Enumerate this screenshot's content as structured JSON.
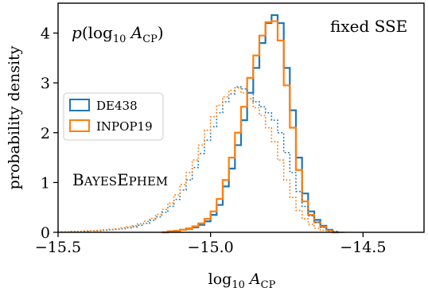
{
  "chart_data": {
    "type": "histogram",
    "title": "",
    "xlabel": "log10 A_CP",
    "ylabel": "probability density",
    "xlim": [
      -15.5,
      -14.3
    ],
    "ylim": [
      0,
      4.6
    ],
    "xticks": [
      -15.5,
      -15.0,
      -14.5
    ],
    "xtick_labels": [
      "−15.5",
      "−15.0",
      "−14.5"
    ],
    "yticks": [
      0,
      1,
      2,
      3,
      4
    ],
    "ytick_labels": [
      "0",
      "1",
      "2",
      "3",
      "4"
    ],
    "grid": false,
    "legend": {
      "position": "left",
      "entries": [
        "DE438",
        "INPOP19"
      ]
    },
    "annotations": {
      "top_left": "p(log10 A_CP)",
      "top_right": "fixed SSE",
      "middle_left": "BayesEphem"
    },
    "series": [
      {
        "name": "DE438",
        "case": "fixed SSE",
        "style": "solid",
        "color": "#1f77b4",
        "bin_start": -15.16,
        "bin_width": 0.02,
        "values": [
          0.0,
          0.02,
          0.03,
          0.05,
          0.07,
          0.1,
          0.15,
          0.22,
          0.35,
          0.55,
          0.92,
          1.28,
          1.75,
          2.25,
          2.8,
          3.3,
          3.8,
          4.2,
          4.36,
          4.2,
          3.3,
          2.45,
          1.5,
          0.78,
          0.42,
          0.25,
          0.13,
          0.05,
          0.0
        ]
      },
      {
        "name": "INPOP19",
        "case": "fixed SSE",
        "style": "solid",
        "color": "#ff7f0e",
        "bin_start": -15.16,
        "bin_width": 0.02,
        "values": [
          0.0,
          0.02,
          0.03,
          0.05,
          0.08,
          0.12,
          0.18,
          0.27,
          0.42,
          0.67,
          1.05,
          1.5,
          2.0,
          2.52,
          3.1,
          3.55,
          3.95,
          4.22,
          4.24,
          3.85,
          2.95,
          2.1,
          1.25,
          0.62,
          0.35,
          0.2,
          0.11,
          0.04,
          0.0
        ]
      },
      {
        "name": "DE438",
        "case": "BayesEphem",
        "style": "dotted",
        "color": "#1f77b4",
        "bin_start": -15.5,
        "bin_width": 0.02,
        "values": [
          0.01,
          0.01,
          0.01,
          0.02,
          0.02,
          0.03,
          0.03,
          0.04,
          0.05,
          0.06,
          0.07,
          0.09,
          0.11,
          0.14,
          0.18,
          0.24,
          0.31,
          0.4,
          0.52,
          0.66,
          0.85,
          1.05,
          1.3,
          1.58,
          1.85,
          2.12,
          2.4,
          2.62,
          2.78,
          2.92,
          2.88,
          2.8,
          2.62,
          2.52,
          2.4,
          2.25,
          2.0,
          1.6,
          1.2,
          0.82,
          0.52,
          0.33,
          0.2,
          0.1,
          0.05,
          0.02,
          0.0
        ]
      },
      {
        "name": "INPOP19",
        "case": "BayesEphem",
        "style": "dotted",
        "color": "#ff7f0e",
        "bin_start": -15.5,
        "bin_width": 0.02,
        "values": [
          0.01,
          0.01,
          0.02,
          0.02,
          0.03,
          0.03,
          0.04,
          0.05,
          0.06,
          0.07,
          0.09,
          0.11,
          0.13,
          0.17,
          0.22,
          0.28,
          0.36,
          0.46,
          0.59,
          0.75,
          0.96,
          1.2,
          1.45,
          1.75,
          2.05,
          2.32,
          2.55,
          2.72,
          2.85,
          2.9,
          2.8,
          2.68,
          2.5,
          2.35,
          2.1,
          1.82,
          1.45,
          1.05,
          0.7,
          0.44,
          0.27,
          0.16,
          0.08,
          0.04,
          0.02,
          0.0,
          0.0
        ]
      }
    ]
  }
}
